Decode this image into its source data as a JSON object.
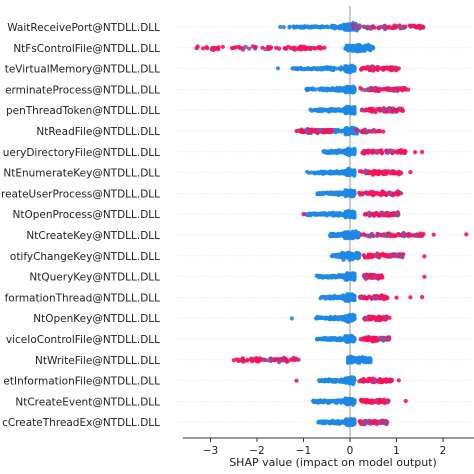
{
  "chart_data": {
    "type": "scatter",
    "subtype": "shap-beeswarm-summary",
    "xlabel": "SHAP value (impact on model output)",
    "xlim": [
      -3.6,
      2.0
    ],
    "x_ticks": [
      -3,
      -2,
      -1,
      0,
      1,
      2
    ],
    "zero_line": true,
    "grid": false,
    "color_low": "#1e88e5",
    "color_high": "#ff0d57",
    "features": [
      {
        "label": "WaitReceivePort@NTDLL.DLL",
        "blue_range": [
          -1.5,
          0.0
        ],
        "core": [
          -0.15,
          0.15
        ],
        "red_range": [
          0.05,
          1.6
        ],
        "neg_red": [],
        "pos_red": [],
        "outliers": [
          {
            "x": -1.5,
            "c": "blue"
          },
          {
            "x": 1.55,
            "c": "red"
          }
        ]
      },
      {
        "label": "NtFsControlFile@NTDLL.DLL",
        "blue_range": [
          0.0,
          0.5
        ],
        "core": [
          -0.1,
          0.45
        ],
        "red_range": [
          -3.3,
          -0.6
        ],
        "neg_red": [
          [
            -3.3,
            -1.6
          ]
        ],
        "pos_red": [],
        "outliers": [
          {
            "x": -3.3,
            "c": "red"
          },
          {
            "x": -1.75,
            "c": "red"
          },
          {
            "x": -0.75,
            "c": "red"
          },
          {
            "x": -0.55,
            "c": "red"
          }
        ]
      },
      {
        "label": "teVirtualMemory@NTDLL.DLL",
        "blue_range": [
          -1.3,
          0.0
        ],
        "core": [
          -0.1,
          0.1
        ],
        "red_range": [
          0.2,
          1.0
        ],
        "neg_red": [],
        "pos_red": [],
        "outliers": [
          {
            "x": -1.55,
            "c": "blue"
          },
          {
            "x": 1.05,
            "c": "red"
          }
        ]
      },
      {
        "label": "erminateProcess@NTDLL.DLL",
        "blue_range": [
          -0.95,
          0.0
        ],
        "core": [
          -0.1,
          0.1
        ],
        "red_range": [
          0.2,
          1.2
        ],
        "neg_red": [],
        "pos_red": [],
        "outliers": [
          {
            "x": 1.25,
            "c": "red"
          }
        ]
      },
      {
        "label": "penThreadToken@NTDLL.DLL",
        "blue_range": [
          -0.85,
          0.0
        ],
        "core": [
          -0.1,
          0.1
        ],
        "red_range": [
          0.2,
          1.15
        ],
        "neg_red": [],
        "pos_red": [],
        "outliers": [
          {
            "x": -0.85,
            "c": "blue"
          }
        ]
      },
      {
        "label": "NtReadFile@NTDLL.DLL",
        "blue_range": [
          -1.15,
          0.0
        ],
        "core": [
          -0.1,
          0.15
        ],
        "red_range": [
          -1.1,
          -0.4
        ],
        "neg_red": [],
        "pos_red": [
          [
            0.1,
            0.75
          ]
        ],
        "outliers": [
          {
            "x": -1.15,
            "c": "red"
          }
        ]
      },
      {
        "label": "ueryDirectoryFile@NTDLL.DLL",
        "blue_range": [
          -0.6,
          0.0
        ],
        "core": [
          -0.1,
          0.1
        ],
        "red_range": [
          0.25,
          1.2
        ],
        "neg_red": [],
        "pos_red": [],
        "outliers": [
          {
            "x": 1.55,
            "c": "red"
          },
          {
            "x": 1.4,
            "c": "red"
          }
        ]
      },
      {
        "label": "NtEnumerateKey@NTDLL.DLL",
        "blue_range": [
          -0.95,
          0.0
        ],
        "core": [
          -0.1,
          0.1
        ],
        "red_range": [
          0.2,
          1.1
        ],
        "neg_red": [],
        "pos_red": [],
        "outliers": [
          {
            "x": 1.3,
            "c": "red"
          }
        ]
      },
      {
        "label": "reateUserProcess@NTDLL.DLL",
        "blue_range": [
          -0.75,
          0.0
        ],
        "core": [
          -0.1,
          0.1
        ],
        "red_range": [
          0.15,
          1.1
        ],
        "neg_red": [],
        "pos_red": [],
        "outliers": []
      },
      {
        "label": "NtOpenProcess@NTDLL.DLL",
        "blue_range": [
          -0.95,
          0.0
        ],
        "core": [
          -0.1,
          0.1
        ],
        "red_range": [
          0.3,
          1.05
        ],
        "neg_red": [],
        "pos_red": [],
        "outliers": [
          {
            "x": -0.95,
            "c": "blue"
          },
          {
            "x": -1.0,
            "c": "red"
          }
        ]
      },
      {
        "label": "NtCreateKey@NTDLL.DLL",
        "blue_range": [
          -0.45,
          0.0
        ],
        "core": [
          -0.15,
          0.2
        ],
        "red_range": [
          0.2,
          1.6
        ],
        "neg_red": [],
        "pos_red": [],
        "outliers": [
          {
            "x": 2.5,
            "c": "red"
          },
          {
            "x": 1.8,
            "c": "red"
          },
          {
            "x": 1.55,
            "c": "red"
          }
        ]
      },
      {
        "label": "otifyChangeKey@NTDLL.DLL",
        "blue_range": [
          -0.4,
          0.0
        ],
        "core": [
          -0.2,
          0.2
        ],
        "red_range": [
          0.25,
          1.15
        ],
        "neg_red": [],
        "pos_red": [],
        "outliers": [
          {
            "x": 1.6,
            "c": "red"
          }
        ]
      },
      {
        "label": "NtQueryKey@NTDLL.DLL",
        "blue_range": [
          -0.75,
          0.0
        ],
        "core": [
          -0.1,
          0.1
        ],
        "red_range": [
          0.3,
          0.7
        ],
        "neg_red": [],
        "pos_red": [],
        "outliers": [
          {
            "x": 1.6,
            "c": "red"
          }
        ]
      },
      {
        "label": "formationThread@NTDLL.DLL",
        "blue_range": [
          -0.65,
          0.0
        ],
        "core": [
          -0.1,
          0.1
        ],
        "red_range": [
          0.2,
          0.8
        ],
        "neg_red": [],
        "pos_red": [],
        "outliers": [
          {
            "x": 1.0,
            "c": "red"
          },
          {
            "x": 1.3,
            "c": "red"
          },
          {
            "x": 1.55,
            "c": "red"
          }
        ]
      },
      {
        "label": "NtOpenKey@NTDLL.DLL",
        "blue_range": [
          -0.75,
          0.0
        ],
        "core": [
          -0.1,
          0.1
        ],
        "red_range": [
          0.3,
          0.8
        ],
        "neg_red": [],
        "pos_red": [],
        "outliers": [
          {
            "x": -1.25,
            "c": "blue"
          },
          {
            "x": 0.85,
            "c": "red"
          }
        ]
      },
      {
        "label": "viceIoControlFile@NTDLL.DLL",
        "blue_range": [
          -0.75,
          0.0
        ],
        "core": [
          -0.1,
          0.1
        ],
        "red_range": [
          0.2,
          0.85
        ],
        "neg_red": [],
        "pos_red": [],
        "outliers": []
      },
      {
        "label": "NtWriteFile@NTDLL.DLL",
        "blue_range": [
          0.0,
          0.4
        ],
        "core": [
          -0.05,
          0.45
        ],
        "red_range": [
          -2.5,
          -1.1
        ],
        "neg_red": [
          [
            -2.5,
            -1.1
          ]
        ],
        "pos_red": [],
        "outliers": [
          {
            "x": -2.5,
            "c": "red"
          }
        ]
      },
      {
        "label": "etInformationFile@NTDLL.DLL",
        "blue_range": [
          -0.7,
          0.0
        ],
        "core": [
          -0.1,
          0.1
        ],
        "red_range": [
          0.2,
          0.9
        ],
        "neg_red": [],
        "pos_red": [],
        "outliers": [
          {
            "x": -1.15,
            "c": "red"
          },
          {
            "x": 1.05,
            "c": "red"
          }
        ]
      },
      {
        "label": "NtCreateEvent@NTDLL.DLL",
        "blue_range": [
          -0.85,
          0.0
        ],
        "core": [
          -0.1,
          0.1
        ],
        "red_range": [
          0.2,
          0.85
        ],
        "neg_red": [],
        "pos_red": [],
        "outliers": [
          {
            "x": 1.2,
            "c": "red"
          }
        ]
      },
      {
        "label": "cCreateThreadEx@NTDLL.DLL",
        "blue_range": [
          -0.7,
          0.0
        ],
        "core": [
          -0.1,
          0.1
        ],
        "red_range": [
          0.2,
          0.8
        ],
        "neg_red": [],
        "pos_red": [],
        "outliers": []
      }
    ]
  }
}
